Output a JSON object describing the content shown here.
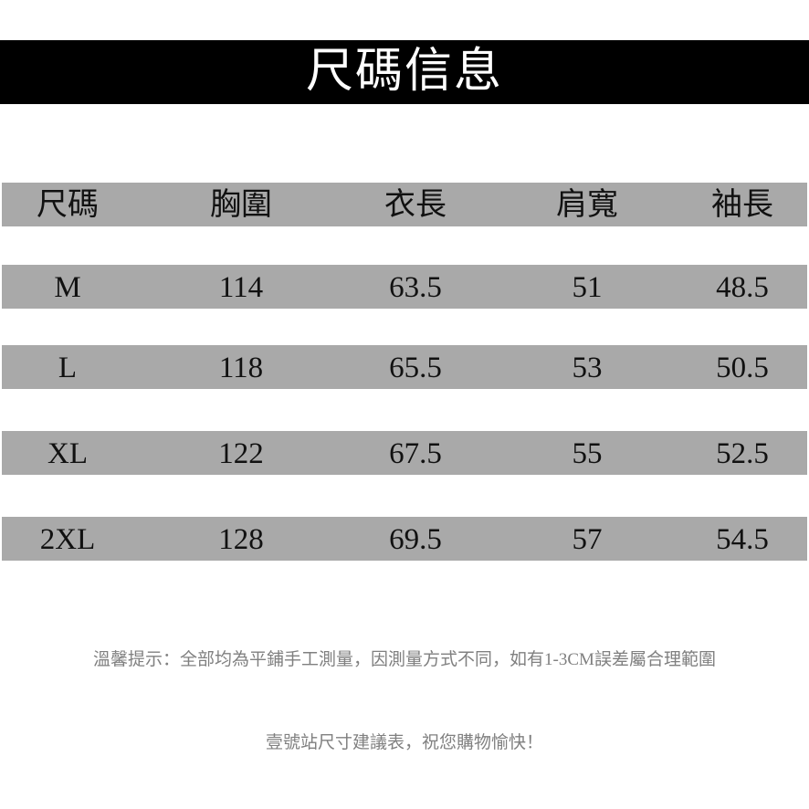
{
  "header": {
    "title": "尺碼信息"
  },
  "table": {
    "columns": [
      "尺碼",
      "胸圍",
      "衣長",
      "肩寬",
      "袖長"
    ],
    "rows": [
      [
        "M",
        "114",
        "63.5",
        "51",
        "48.5"
      ],
      [
        "L",
        "118",
        "65.5",
        "53",
        "50.5"
      ],
      [
        "XL",
        "122",
        "67.5",
        "55",
        "52.5"
      ],
      [
        "2XL",
        "128",
        "69.5",
        "57",
        "54.5"
      ]
    ]
  },
  "notes": [
    "溫馨提示：全部均為平鋪手工測量，因測量方式不同，如有1-3CM誤差屬合理範圍",
    "壹號站尺寸建議表，祝您購物愉快！"
  ]
}
